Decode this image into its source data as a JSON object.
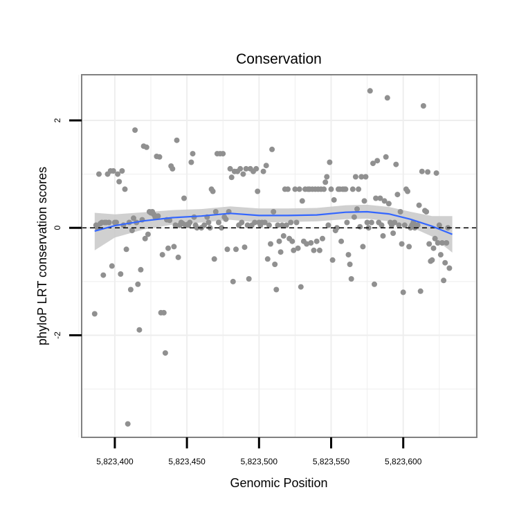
{
  "chart_data": {
    "type": "scatter",
    "title": "Conservation",
    "xlabel": "Genomic Position",
    "ylabel": "phyloP LRT conservation scores",
    "xlim": [
      5823377,
      5823651
    ],
    "ylim": [
      -3.9,
      2.85
    ],
    "x_ticks": [
      5823400,
      5823450,
      5823500,
      5823550,
      5823600
    ],
    "x_tick_labels": [
      "5,823,400",
      "5,823,450",
      "5,823,500",
      "5,823,550",
      "5,823,600"
    ],
    "y_ticks": [
      -2,
      0,
      2
    ],
    "y_tick_labels": [
      "-2",
      "0",
      "2"
    ],
    "reference_line": {
      "y": 0,
      "style": "dashed",
      "color": "#000000"
    },
    "colors": {
      "points": "#909090",
      "smooth": "#3366FF",
      "band": "#c8c8c8",
      "panel_border": "#808080",
      "grid": "#eeeeee"
    },
    "points": [
      {
        "x": 5823386,
        "y": -1.6
      },
      {
        "x": 5823387,
        "y": 0.05
      },
      {
        "x": 5823388,
        "y": 0.0
      },
      {
        "x": 5823389,
        "y": 1.0
      },
      {
        "x": 5823390,
        "y": 0.08
      },
      {
        "x": 5823391,
        "y": 0.1
      },
      {
        "x": 5823392,
        "y": -0.88
      },
      {
        "x": 5823393,
        "y": 0.1
      },
      {
        "x": 5823394,
        "y": 0.1
      },
      {
        "x": 5823395,
        "y": 1.0
      },
      {
        "x": 5823396,
        "y": 0.1
      },
      {
        "x": 5823397,
        "y": 1.06
      },
      {
        "x": 5823398,
        "y": -0.71
      },
      {
        "x": 5823399,
        "y": 1.06
      },
      {
        "x": 5823400,
        "y": 0.1
      },
      {
        "x": 5823401,
        "y": 0.1
      },
      {
        "x": 5823402,
        "y": 1.0
      },
      {
        "x": 5823403,
        "y": 0.86
      },
      {
        "x": 5823404,
        "y": -0.86
      },
      {
        "x": 5823405,
        "y": 1.06
      },
      {
        "x": 5823406,
        "y": 0.05
      },
      {
        "x": 5823407,
        "y": 0.72
      },
      {
        "x": 5823408,
        "y": -0.4
      },
      {
        "x": 5823409,
        "y": -3.65
      },
      {
        "x": 5823410,
        "y": 0.1
      },
      {
        "x": 5823411,
        "y": -1.15
      },
      {
        "x": 5823412,
        "y": -0.05
      },
      {
        "x": 5823413,
        "y": 0.18
      },
      {
        "x": 5823414,
        "y": 1.82
      },
      {
        "x": 5823415,
        "y": 0.1
      },
      {
        "x": 5823416,
        "y": -1.05
      },
      {
        "x": 5823417,
        "y": -1.9
      },
      {
        "x": 5823418,
        "y": -0.78
      },
      {
        "x": 5823419,
        "y": 0.15
      },
      {
        "x": 5823420,
        "y": 1.52
      },
      {
        "x": 5823421,
        "y": -0.2
      },
      {
        "x": 5823422,
        "y": 1.5
      },
      {
        "x": 5823423,
        "y": -0.12
      },
      {
        "x": 5823424,
        "y": 0.3
      },
      {
        "x": 5823425,
        "y": 0.28
      },
      {
        "x": 5823426,
        "y": 0.3
      },
      {
        "x": 5823427,
        "y": 0.25
      },
      {
        "x": 5823428,
        "y": 0.2
      },
      {
        "x": 5823429,
        "y": 1.33
      },
      {
        "x": 5823430,
        "y": 0.22
      },
      {
        "x": 5823431,
        "y": 1.32
      },
      {
        "x": 5823432,
        "y": -1.58
      },
      {
        "x": 5823433,
        "y": -0.5
      },
      {
        "x": 5823434,
        "y": -1.58
      },
      {
        "x": 5823435,
        "y": -2.33
      },
      {
        "x": 5823436,
        "y": 0.15
      },
      {
        "x": 5823437,
        "y": -0.38
      },
      {
        "x": 5823438,
        "y": 0.14
      },
      {
        "x": 5823439,
        "y": 1.15
      },
      {
        "x": 5823440,
        "y": 1.1
      },
      {
        "x": 5823441,
        "y": -0.35
      },
      {
        "x": 5823442,
        "y": 0.05
      },
      {
        "x": 5823443,
        "y": 1.63
      },
      {
        "x": 5823444,
        "y": -0.55
      },
      {
        "x": 5823445,
        "y": 0.05
      },
      {
        "x": 5823446,
        "y": 0.1
      },
      {
        "x": 5823447,
        "y": 0.08
      },
      {
        "x": 5823448,
        "y": 0.55
      },
      {
        "x": 5823449,
        "y": 0.05
      },
      {
        "x": 5823450,
        "y": 0.06
      },
      {
        "x": 5823451,
        "y": 0.05
      },
      {
        "x": 5823452,
        "y": 0.1
      },
      {
        "x": 5823453,
        "y": 1.22
      },
      {
        "x": 5823454,
        "y": 1.38
      },
      {
        "x": 5823455,
        "y": 0.2
      },
      {
        "x": 5823456,
        "y": 0.05
      },
      {
        "x": 5823457,
        "y": 0.0
      },
      {
        "x": 5823460,
        "y": 0.0
      },
      {
        "x": 5823462,
        "y": 0.05
      },
      {
        "x": 5823464,
        "y": 0.2
      },
      {
        "x": 5823465,
        "y": 0.1
      },
      {
        "x": 5823466,
        "y": 0.0
      },
      {
        "x": 5823467,
        "y": 0.72
      },
      {
        "x": 5823468,
        "y": 0.68
      },
      {
        "x": 5823469,
        "y": -0.58
      },
      {
        "x": 5823470,
        "y": 0.3
      },
      {
        "x": 5823471,
        "y": 1.38
      },
      {
        "x": 5823472,
        "y": 0.1
      },
      {
        "x": 5823473,
        "y": 1.38
      },
      {
        "x": 5823474,
        "y": 0.0
      },
      {
        "x": 5823475,
        "y": 1.38
      },
      {
        "x": 5823476,
        "y": 0.2
      },
      {
        "x": 5823477,
        "y": 0.16
      },
      {
        "x": 5823478,
        "y": -0.4
      },
      {
        "x": 5823479,
        "y": 0.3
      },
      {
        "x": 5823480,
        "y": 1.1
      },
      {
        "x": 5823481,
        "y": 0.94
      },
      {
        "x": 5823482,
        "y": -1.0
      },
      {
        "x": 5823483,
        "y": 1.05
      },
      {
        "x": 5823484,
        "y": -0.4
      },
      {
        "x": 5823485,
        "y": 1.05
      },
      {
        "x": 5823486,
        "y": 0.05
      },
      {
        "x": 5823487,
        "y": 1.1
      },
      {
        "x": 5823488,
        "y": 0.1
      },
      {
        "x": 5823489,
        "y": 1.0
      },
      {
        "x": 5823490,
        "y": -0.36
      },
      {
        "x": 5823491,
        "y": 1.1
      },
      {
        "x": 5823492,
        "y": 0.05
      },
      {
        "x": 5823493,
        "y": -0.95
      },
      {
        "x": 5823494,
        "y": 1.1
      },
      {
        "x": 5823495,
        "y": 0.05
      },
      {
        "x": 5823496,
        "y": 1.05
      },
      {
        "x": 5823497,
        "y": 0.1
      },
      {
        "x": 5823498,
        "y": 1.1
      },
      {
        "x": 5823499,
        "y": 0.68
      },
      {
        "x": 5823500,
        "y": 0.1
      },
      {
        "x": 5823501,
        "y": 0.05
      },
      {
        "x": 5823502,
        "y": 0.1
      },
      {
        "x": 5823503,
        "y": 1.05
      },
      {
        "x": 5823504,
        "y": 0.1
      },
      {
        "x": 5823505,
        "y": 1.16
      },
      {
        "x": 5823506,
        "y": -0.58
      },
      {
        "x": 5823507,
        "y": 0.05
      },
      {
        "x": 5823508,
        "y": -0.3
      },
      {
        "x": 5823509,
        "y": 1.46
      },
      {
        "x": 5823510,
        "y": 0.3
      },
      {
        "x": 5823511,
        "y": -0.68
      },
      {
        "x": 5823512,
        "y": -1.15
      },
      {
        "x": 5823513,
        "y": 0.05
      },
      {
        "x": 5823514,
        "y": -0.25
      },
      {
        "x": 5823515,
        "y": -0.45
      },
      {
        "x": 5823516,
        "y": 0.05
      },
      {
        "x": 5823517,
        "y": -0.15
      },
      {
        "x": 5823518,
        "y": 0.72
      },
      {
        "x": 5823519,
        "y": 0.05
      },
      {
        "x": 5823520,
        "y": 0.72
      },
      {
        "x": 5823521,
        "y": -0.2
      },
      {
        "x": 5823522,
        "y": 0.1
      },
      {
        "x": 5823523,
        "y": -0.25
      },
      {
        "x": 5823524,
        "y": -0.42
      },
      {
        "x": 5823525,
        "y": 0.72
      },
      {
        "x": 5823526,
        "y": 0.1
      },
      {
        "x": 5823527,
        "y": -0.38
      },
      {
        "x": 5823528,
        "y": 0.72
      },
      {
        "x": 5823529,
        "y": -1.1
      },
      {
        "x": 5823530,
        "y": 0.5
      },
      {
        "x": 5823531,
        "y": -0.25
      },
      {
        "x": 5823532,
        "y": 0.72
      },
      {
        "x": 5823533,
        "y": -0.3
      },
      {
        "x": 5823534,
        "y": 0.72
      },
      {
        "x": 5823535,
        "y": 0.72
      },
      {
        "x": 5823536,
        "y": -0.28
      },
      {
        "x": 5823537,
        "y": 0.72
      },
      {
        "x": 5823538,
        "y": -0.42
      },
      {
        "x": 5823539,
        "y": 0.72
      },
      {
        "x": 5823540,
        "y": -0.25
      },
      {
        "x": 5823541,
        "y": 0.72
      },
      {
        "x": 5823542,
        "y": -0.42
      },
      {
        "x": 5823543,
        "y": 0.72
      },
      {
        "x": 5823544,
        "y": -0.2
      },
      {
        "x": 5823545,
        "y": 0.72
      },
      {
        "x": 5823546,
        "y": 0.85
      },
      {
        "x": 5823547,
        "y": 0.95
      },
      {
        "x": 5823548,
        "y": 0.05
      },
      {
        "x": 5823549,
        "y": 1.22
      },
      {
        "x": 5823550,
        "y": 0.72
      },
      {
        "x": 5823551,
        "y": -0.6
      },
      {
        "x": 5823552,
        "y": 0.52
      },
      {
        "x": 5823553,
        "y": -0.05
      },
      {
        "x": 5823554,
        "y": 0.0
      },
      {
        "x": 5823555,
        "y": 0.72
      },
      {
        "x": 5823556,
        "y": 0.72
      },
      {
        "x": 5823557,
        "y": -0.25
      },
      {
        "x": 5823558,
        "y": 0.72
      },
      {
        "x": 5823559,
        "y": 0.72
      },
      {
        "x": 5823560,
        "y": 0.72
      },
      {
        "x": 5823561,
        "y": 0.1
      },
      {
        "x": 5823562,
        "y": -0.5
      },
      {
        "x": 5823563,
        "y": -0.68
      },
      {
        "x": 5823564,
        "y": -0.95
      },
      {
        "x": 5823565,
        "y": 0.72
      },
      {
        "x": 5823566,
        "y": 0.2
      },
      {
        "x": 5823567,
        "y": 0.95
      },
      {
        "x": 5823568,
        "y": 0.35
      },
      {
        "x": 5823569,
        "y": 0.72
      },
      {
        "x": 5823570,
        "y": 0.02
      },
      {
        "x": 5823571,
        "y": 0.95
      },
      {
        "x": 5823572,
        "y": -0.35
      },
      {
        "x": 5823573,
        "y": 0.5
      },
      {
        "x": 5823574,
        "y": 0.95
      },
      {
        "x": 5823575,
        "y": 0.1
      },
      {
        "x": 5823576,
        "y": 0.0
      },
      {
        "x": 5823577,
        "y": 2.55
      },
      {
        "x": 5823578,
        "y": 0.1
      },
      {
        "x": 5823579,
        "y": 1.2
      },
      {
        "x": 5823580,
        "y": -1.05
      },
      {
        "x": 5823581,
        "y": 0.55
      },
      {
        "x": 5823582,
        "y": 1.25
      },
      {
        "x": 5823583,
        "y": 0.1
      },
      {
        "x": 5823584,
        "y": 0.55
      },
      {
        "x": 5823585,
        "y": 0.05
      },
      {
        "x": 5823586,
        "y": -0.15
      },
      {
        "x": 5823587,
        "y": 0.5
      },
      {
        "x": 5823588,
        "y": 1.32
      },
      {
        "x": 5823589,
        "y": 2.42
      },
      {
        "x": 5823590,
        "y": 0.45
      },
      {
        "x": 5823591,
        "y": 0.1
      },
      {
        "x": 5823592,
        "y": 0.05
      },
      {
        "x": 5823593,
        "y": -0.1
      },
      {
        "x": 5823594,
        "y": 0.1
      },
      {
        "x": 5823595,
        "y": 1.18
      },
      {
        "x": 5823596,
        "y": 0.62
      },
      {
        "x": 5823597,
        "y": 0.05
      },
      {
        "x": 5823598,
        "y": 0.3
      },
      {
        "x": 5823599,
        "y": -0.3
      },
      {
        "x": 5823600,
        "y": -1.2
      },
      {
        "x": 5823601,
        "y": 0.05
      },
      {
        "x": 5823602,
        "y": 0.72
      },
      {
        "x": 5823603,
        "y": 0.68
      },
      {
        "x": 5823604,
        "y": -0.35
      },
      {
        "x": 5823605,
        "y": 0.0
      },
      {
        "x": 5823606,
        "y": 0.05
      },
      {
        "x": 5823607,
        "y": 0.1
      },
      {
        "x": 5823608,
        "y": 0.0
      },
      {
        "x": 5823609,
        "y": 0.05
      },
      {
        "x": 5823610,
        "y": 0.05
      },
      {
        "x": 5823611,
        "y": 0.42
      },
      {
        "x": 5823612,
        "y": -1.18
      },
      {
        "x": 5823613,
        "y": 1.05
      },
      {
        "x": 5823614,
        "y": 2.27
      },
      {
        "x": 5823615,
        "y": 0.32
      },
      {
        "x": 5823616,
        "y": 0.3
      },
      {
        "x": 5823617,
        "y": 1.04
      },
      {
        "x": 5823618,
        "y": -0.3
      },
      {
        "x": 5823619,
        "y": -0.62
      },
      {
        "x": 5823620,
        "y": -0.6
      },
      {
        "x": 5823621,
        "y": -0.38
      },
      {
        "x": 5823622,
        "y": -0.2
      },
      {
        "x": 5823623,
        "y": 1.02
      },
      {
        "x": 5823624,
        "y": -0.28
      },
      {
        "x": 5823625,
        "y": 0.05
      },
      {
        "x": 5823626,
        "y": -0.5
      },
      {
        "x": 5823627,
        "y": -0.28
      },
      {
        "x": 5823628,
        "y": -0.98
      },
      {
        "x": 5823629,
        "y": -0.65
      },
      {
        "x": 5823630,
        "y": -0.28
      },
      {
        "x": 5823631,
        "y": 0.0
      },
      {
        "x": 5823632,
        "y": -0.75
      }
    ],
    "smooth": {
      "x": [
        5823386,
        5823400,
        5823420,
        5823440,
        5823460,
        5823480,
        5823500,
        5823520,
        5823540,
        5823560,
        5823575,
        5823590,
        5823605,
        5823620,
        5823634
      ],
      "y": [
        -0.06,
        0.04,
        0.13,
        0.19,
        0.22,
        0.27,
        0.23,
        0.23,
        0.24,
        0.29,
        0.3,
        0.26,
        0.16,
        0.03,
        -0.12
      ],
      "low": [
        -0.42,
        -0.18,
        -0.03,
        0.06,
        0.1,
        0.15,
        0.1,
        0.11,
        0.12,
        0.16,
        0.17,
        0.12,
        0.02,
        -0.16,
        -0.46
      ],
      "high": [
        0.28,
        0.25,
        0.29,
        0.33,
        0.35,
        0.4,
        0.36,
        0.36,
        0.37,
        0.42,
        0.43,
        0.39,
        0.3,
        0.22,
        0.22
      ]
    }
  }
}
